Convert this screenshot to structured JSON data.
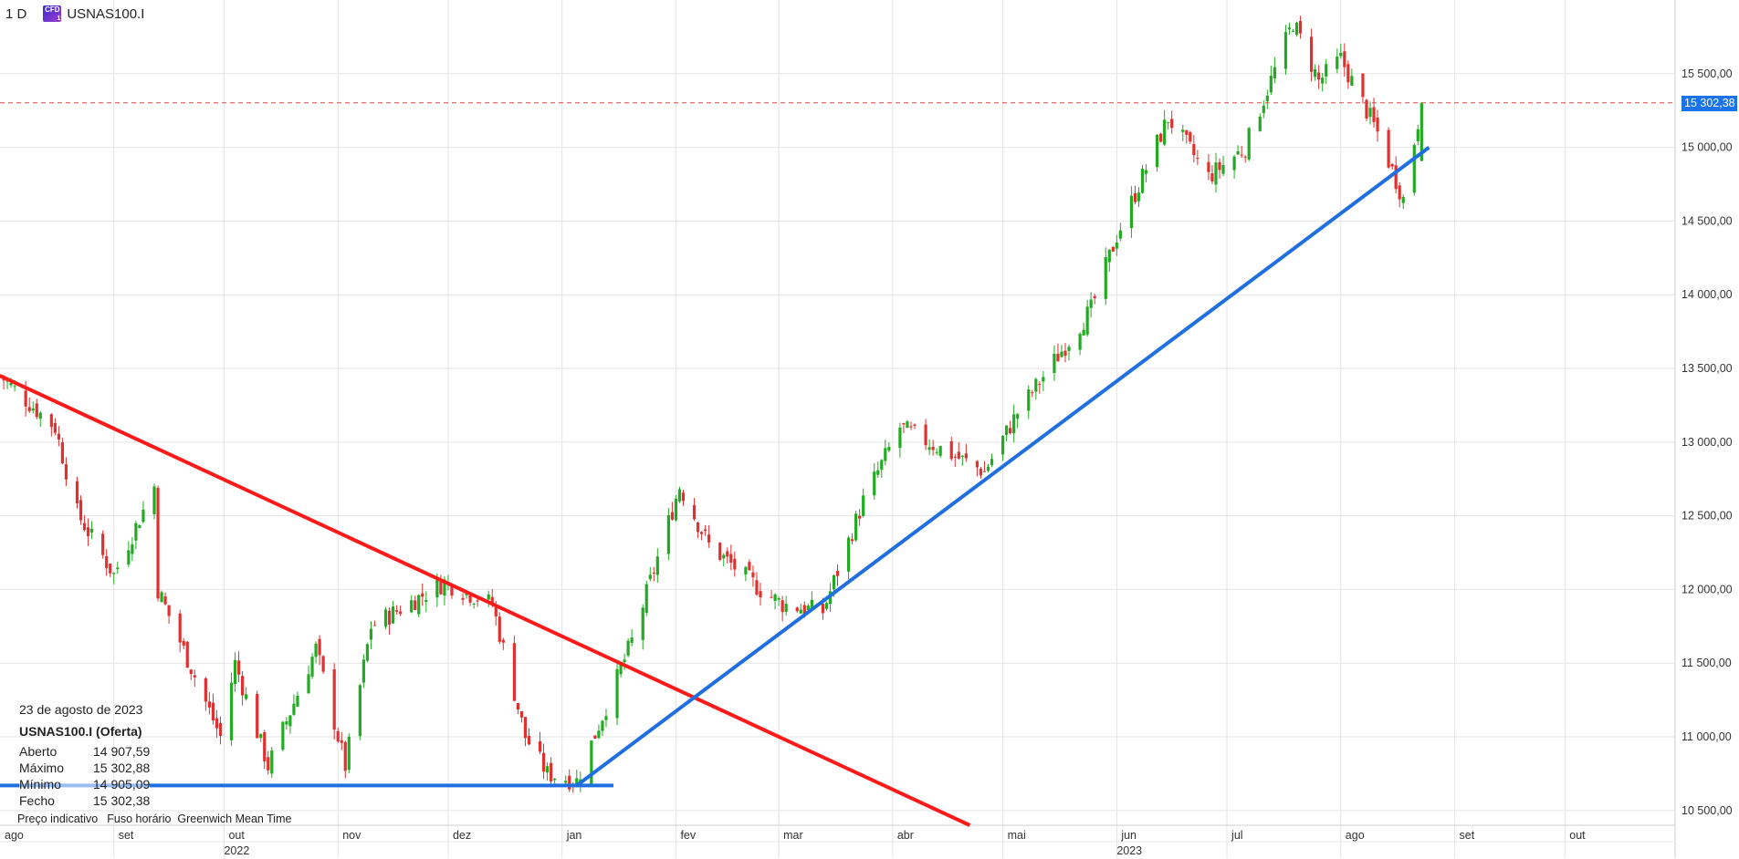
{
  "header": {
    "timeframe": "1 D",
    "symbol": "USNAS100.I",
    "badge_text": "CFD",
    "badge_sub": "1"
  },
  "info_panel": {
    "date": "23 de agosto de 2023",
    "instrument": "USNAS100.I (Oferta)",
    "rows": [
      {
        "label": "Aberto",
        "value": "14 907,59"
      },
      {
        "label": "Máximo",
        "value": "15 302,88"
      },
      {
        "label": "Mínimo",
        "value": "14 905,09"
      },
      {
        "label": "Fecho",
        "value": "15 302,38"
      }
    ]
  },
  "footer": {
    "indicative": "Preço indicativo",
    "tz_label": "Fuso horário",
    "tz_value": "Greenwich Mean Time"
  },
  "current_price_label": "15 302,38",
  "colors": {
    "up": "#22aa22",
    "down": "#e03030",
    "trend_red": "#ff1a1a",
    "trend_blue": "#1f6fe0",
    "price_line": "#e04848",
    "grid": "#e4e4e4",
    "price_box": "#1a73e8"
  },
  "chart_data": {
    "type": "candlestick",
    "title": "",
    "ylim": [
      10400,
      16000
    ],
    "y_ticks": [
      {
        "value": 10500,
        "label": "10 500,00"
      },
      {
        "value": 11000,
        "label": "11 000,00"
      },
      {
        "value": 11500,
        "label": "11 500,00"
      },
      {
        "value": 12000,
        "label": "12 000,00"
      },
      {
        "value": 12500,
        "label": "12 500,00"
      },
      {
        "value": 13000,
        "label": "13 000,00"
      },
      {
        "value": 13500,
        "label": "13 500,00"
      },
      {
        "value": 14000,
        "label": "14 000,00"
      },
      {
        "value": 14500,
        "label": "14 500,00"
      },
      {
        "value": 15000,
        "label": "15 000,00"
      },
      {
        "value": 15500,
        "label": "15 500,00"
      }
    ],
    "x_range": [
      "2022-08-01",
      "2023-10-31"
    ],
    "month_ticks": [
      {
        "date": "2022-08-01",
        "label": "ago"
      },
      {
        "date": "2022-09-01",
        "label": "set"
      },
      {
        "date": "2022-10-01",
        "label": "out"
      },
      {
        "date": "2022-11-01",
        "label": "nov"
      },
      {
        "date": "2022-12-01",
        "label": "dez"
      },
      {
        "date": "2023-01-01",
        "label": "jan"
      },
      {
        "date": "2023-02-01",
        "label": "fev"
      },
      {
        "date": "2023-03-01",
        "label": "mar"
      },
      {
        "date": "2023-04-01",
        "label": "abr"
      },
      {
        "date": "2023-05-01",
        "label": "mai"
      },
      {
        "date": "2023-06-01",
        "label": "jun"
      },
      {
        "date": "2023-07-01",
        "label": "jul"
      },
      {
        "date": "2023-08-01",
        "label": "ago"
      },
      {
        "date": "2023-09-01",
        "label": "set"
      },
      {
        "date": "2023-10-01",
        "label": "out"
      }
    ],
    "year_ticks": [
      {
        "date": "2022-10-01",
        "label": "2022"
      },
      {
        "date": "2023-06-01",
        "label": "2023"
      }
    ],
    "current_price": 15302.38,
    "trendlines": [
      {
        "color": "red",
        "x1": "2022-08-01",
        "y1": 13450,
        "x2": "2023-04-22",
        "y2": 10400
      },
      {
        "color": "blue",
        "x1": "2023-01-05",
        "y1": 10670,
        "x2": "2023-08-25",
        "y2": 15000
      },
      {
        "color": "blue",
        "x1": "2022-08-01",
        "y1": 10670,
        "x2": "2023-01-15",
        "y2": 10670
      }
    ],
    "closes": [
      {
        "date": "2022-08-01",
        "close": 13450
      },
      {
        "date": "2022-08-16",
        "close": 13100
      },
      {
        "date": "2022-08-22",
        "close": 12520
      },
      {
        "date": "2022-09-01",
        "close": 12100
      },
      {
        "date": "2022-09-12",
        "close": 12700
      },
      {
        "date": "2022-09-13",
        "close": 12000
      },
      {
        "date": "2022-09-30",
        "close": 11000
      },
      {
        "date": "2022-10-04",
        "close": 11500
      },
      {
        "date": "2022-10-13",
        "close": 10800
      },
      {
        "date": "2022-10-26",
        "close": 11600
      },
      {
        "date": "2022-11-03",
        "close": 10800
      },
      {
        "date": "2022-11-10",
        "close": 11750
      },
      {
        "date": "2022-11-30",
        "close": 12050
      },
      {
        "date": "2022-12-13",
        "close": 11900
      },
      {
        "date": "2022-12-22",
        "close": 11000
      },
      {
        "date": "2022-12-28",
        "close": 10750
      },
      {
        "date": "2023-01-05",
        "close": 10700
      },
      {
        "date": "2023-01-20",
        "close": 11650
      },
      {
        "date": "2023-02-02",
        "close": 12700
      },
      {
        "date": "2023-02-10",
        "close": 12300
      },
      {
        "date": "2023-02-24",
        "close": 12000
      },
      {
        "date": "2023-03-02",
        "close": 11900
      },
      {
        "date": "2023-03-13",
        "close": 11850
      },
      {
        "date": "2023-03-24",
        "close": 12600
      },
      {
        "date": "2023-04-03",
        "close": 13100
      },
      {
        "date": "2023-04-26",
        "close": 12800
      },
      {
        "date": "2023-05-05",
        "close": 13200
      },
      {
        "date": "2023-05-25",
        "close": 13900
      },
      {
        "date": "2023-06-01",
        "close": 14400
      },
      {
        "date": "2023-06-15",
        "close": 15200
      },
      {
        "date": "2023-06-26",
        "close": 14800
      },
      {
        "date": "2023-07-06",
        "close": 15000
      },
      {
        "date": "2023-07-19",
        "close": 15850
      },
      {
        "date": "2023-07-26",
        "close": 15450
      },
      {
        "date": "2023-08-01",
        "close": 15600
      },
      {
        "date": "2023-08-11",
        "close": 15100
      },
      {
        "date": "2023-08-18",
        "close": 14650
      },
      {
        "date": "2023-08-23",
        "close": 15302
      }
    ]
  }
}
